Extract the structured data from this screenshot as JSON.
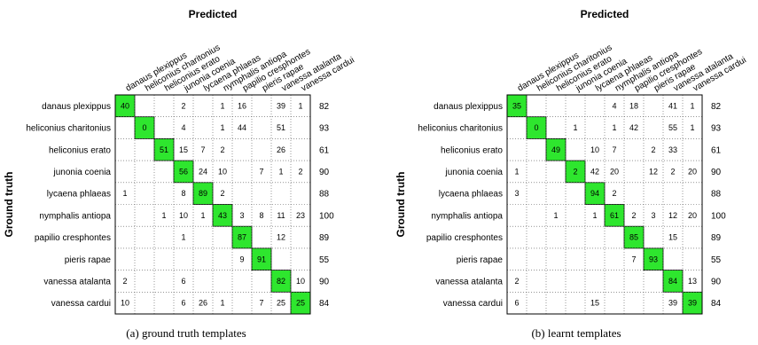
{
  "panels": [
    {
      "caption": "(a)  ground truth templates",
      "header": "Predicted",
      "ylabel": "Ground truth"
    },
    {
      "caption": "(b)  learnt templates",
      "header": "Predicted",
      "ylabel": "Ground truth"
    }
  ],
  "colors": {
    "diagonal": "#2ee62e",
    "grid": "#555555",
    "text": "#000000"
  },
  "chart_data": [
    {
      "type": "heatmap",
      "xlabel": "Predicted",
      "ylabel": "Ground truth",
      "categories": [
        "danaus plexippus",
        "heliconius charitonius",
        "heliconius erato",
        "junonia coenia",
        "lycaena phlaeas",
        "nymphalis antiopa",
        "papilio cresphontes",
        "pieris rapae",
        "vanessa atalanta",
        "vanessa cardui"
      ],
      "matrix": [
        [
          40,
          null,
          null,
          2,
          null,
          1,
          16,
          null,
          39,
          1
        ],
        [
          null,
          0,
          null,
          4,
          null,
          1,
          44,
          null,
          51,
          null
        ],
        [
          null,
          null,
          51,
          15,
          7,
          2,
          null,
          null,
          26,
          null
        ],
        [
          null,
          null,
          null,
          56,
          24,
          10,
          null,
          7,
          1,
          2
        ],
        [
          1,
          null,
          null,
          8,
          89,
          2,
          null,
          null,
          null,
          null
        ],
        [
          null,
          null,
          1,
          10,
          1,
          43,
          3,
          8,
          11,
          23
        ],
        [
          null,
          null,
          null,
          1,
          null,
          null,
          87,
          null,
          12,
          null
        ],
        [
          null,
          null,
          null,
          null,
          null,
          null,
          9,
          91,
          null,
          null
        ],
        [
          2,
          null,
          null,
          6,
          null,
          null,
          null,
          null,
          82,
          10
        ],
        [
          10,
          null,
          null,
          6,
          26,
          1,
          null,
          7,
          25,
          25
        ]
      ],
      "row_totals": [
        82,
        93,
        61,
        90,
        88,
        100,
        89,
        55,
        90,
        84
      ],
      "diagonal_highlight": true
    },
    {
      "type": "heatmap",
      "xlabel": "Predicted",
      "ylabel": "Ground truth",
      "categories": [
        "danaus plexippus",
        "heliconius charitonius",
        "heliconius erato",
        "junonia coenia",
        "lycaena phlaeas",
        "nymphalis antiopa",
        "papilio cresphontes",
        "pieris rapae",
        "vanessa atalanta",
        "vanessa cardui"
      ],
      "matrix": [
        [
          35,
          null,
          null,
          null,
          null,
          4,
          18,
          null,
          41,
          1
        ],
        [
          null,
          0,
          null,
          1,
          null,
          1,
          42,
          null,
          55,
          1
        ],
        [
          null,
          null,
          49,
          null,
          10,
          7,
          null,
          2,
          33,
          null
        ],
        [
          1,
          null,
          null,
          2,
          42,
          20,
          null,
          12,
          2,
          20
        ],
        [
          3,
          null,
          null,
          null,
          94,
          2,
          null,
          null,
          null,
          null
        ],
        [
          null,
          null,
          1,
          null,
          1,
          61,
          2,
          3,
          12,
          20
        ],
        [
          null,
          null,
          null,
          null,
          null,
          null,
          85,
          null,
          15,
          null
        ],
        [
          null,
          null,
          null,
          null,
          null,
          null,
          7,
          93,
          null,
          null
        ],
        [
          2,
          null,
          null,
          null,
          null,
          null,
          null,
          null,
          84,
          13
        ],
        [
          6,
          null,
          null,
          null,
          15,
          null,
          null,
          null,
          39,
          39
        ]
      ],
      "row_totals": [
        82,
        93,
        61,
        90,
        88,
        100,
        89,
        55,
        90,
        84
      ],
      "diagonal_highlight": true
    }
  ]
}
